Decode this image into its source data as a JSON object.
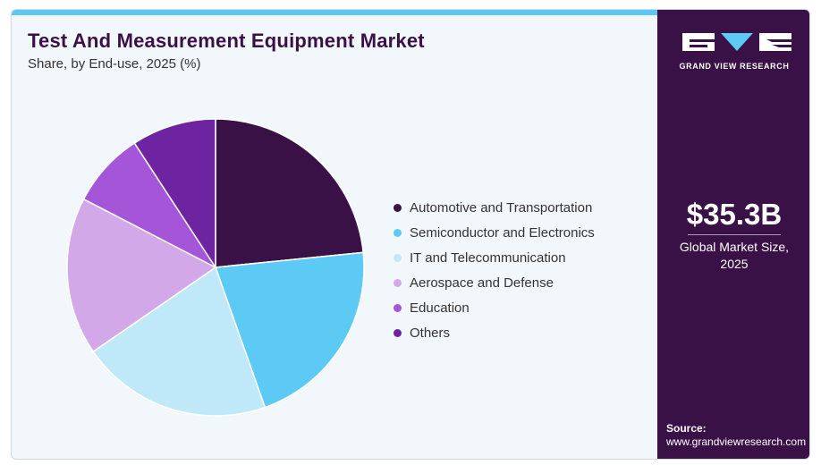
{
  "header": {
    "title": "Test And Measurement Equipment Market",
    "subtitle": "Share, by End-use, 2025 (%)"
  },
  "chart_data": {
    "type": "pie",
    "title": "Test And Measurement Equipment Market",
    "subtitle": "Share, by End-use, 2025 (%)",
    "categories": [
      "Automotive and Transportation",
      "Semiconductor and Electronics",
      "IT and Telecommunication",
      "Aerospace and Defense",
      "Education",
      "Others"
    ],
    "values": [
      23.4,
      21.2,
      20.8,
      17.2,
      8.2,
      9.2
    ],
    "colors": [
      "#3a1147",
      "#5dcaf5",
      "#bfe8f9",
      "#d3a8e8",
      "#a455d8",
      "#6e24a0"
    ],
    "legend_position": "right",
    "start": "top, clockwise"
  },
  "sidebar": {
    "brand": "GRAND VIEW RESEARCH",
    "market_value": "$35.3B",
    "market_label": "Global Market Size, 2025",
    "source_label": "Source:",
    "source_url": "www.grandviewresearch.com"
  }
}
